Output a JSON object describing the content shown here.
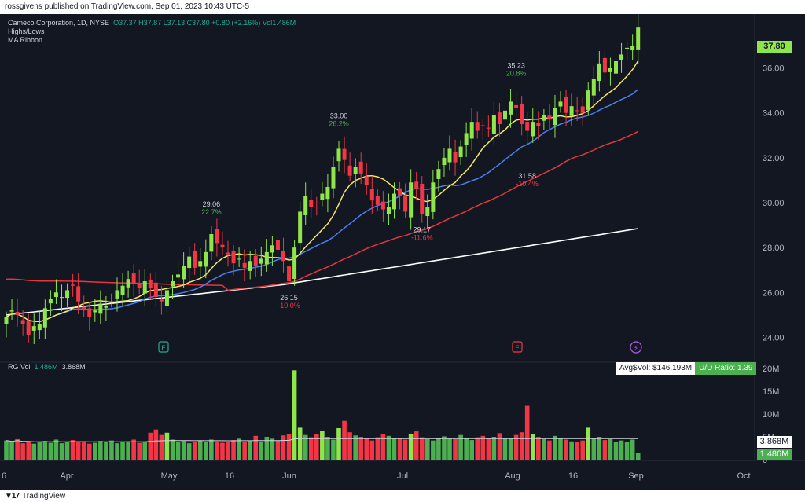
{
  "header": {
    "publish_text": "rossgivens published on TradingView.com, Sep 01, 2023 10:43 UTC-5"
  },
  "footer": {
    "brand": "TradingView"
  },
  "legend": {
    "symbol": "Cameco Corporation, 1D, NYSE",
    "ohlc": "O37.37  H37.87  L37.13  C37.80  +0.80 (+2.16%)  Vol1.486M",
    "studies": [
      "Highs/Lows",
      "MA Ribbon"
    ]
  },
  "volume_legend": {
    "label": "RG Vol",
    "value1": "1.486M",
    "value2": "3.868M"
  },
  "avg_box": {
    "avg_label": "Avg$Vol: $146.193M",
    "ratio_label": "U/D Ratio: 1.39"
  },
  "price_tags": {
    "last_price": "37.80",
    "vol_avg": "3.868M",
    "vol_last": "1.486M"
  },
  "colors": {
    "up": "#8fe64a",
    "up_dark": "#4caf50",
    "down": "#f23645",
    "ma10": "#f5e663",
    "ma21": "#4c7ef0",
    "ma50": "#e5363d",
    "ma200": "#ffffff",
    "bg": "#131722"
  },
  "chart_data": {
    "type": "candlestick",
    "price_axis": {
      "ticks": [
        "24.00",
        "26.00",
        "28.00",
        "30.00",
        "32.00",
        "34.00",
        "36.00"
      ],
      "range": [
        23.0,
        38.4
      ]
    },
    "volume_axis": {
      "ticks": [
        "0",
        "5M",
        "10M",
        "15M",
        "20M"
      ],
      "range": [
        0,
        20
      ]
    },
    "x_ticks": [
      {
        "label": "6",
        "x": 5
      },
      {
        "label": "Apr",
        "x": 85
      },
      {
        "label": "May",
        "x": 215
      },
      {
        "label": "16",
        "x": 292
      },
      {
        "label": "Jun",
        "x": 368
      },
      {
        "label": "Jul",
        "x": 512
      },
      {
        "label": "Aug",
        "x": 652
      },
      {
        "label": "16",
        "x": 729
      },
      {
        "label": "Sep",
        "x": 809
      },
      {
        "label": "Oct",
        "x": 946
      }
    ],
    "annotations": [
      {
        "price": "29.06",
        "pct": "22.7%",
        "type": "high",
        "i": 37
      },
      {
        "price": "26.15",
        "pct": "-10.0%",
        "type": "low",
        "i": 51
      },
      {
        "price": "33.00",
        "pct": "26.2%",
        "type": "high",
        "i": 60
      },
      {
        "price": "29.17",
        "pct": "-11.6%",
        "type": "low",
        "i": 75
      },
      {
        "price": "35.23",
        "pct": "20.8%",
        "type": "high",
        "i": 92
      },
      {
        "price": "31.58",
        "pct": "-10.4%",
        "type": "low",
        "i": 94
      }
    ],
    "event_markers": [
      {
        "label": "E",
        "x": 208,
        "kind": "earnings-past"
      },
      {
        "label": "E",
        "x": 658,
        "kind": "earnings"
      },
      {
        "label": "⚡",
        "x": 809,
        "kind": "dividend"
      }
    ],
    "close": [
      24.9,
      25.2,
      25.0,
      24.6,
      24.1,
      24.5,
      24.6,
      25.3,
      25.7,
      26.0,
      25.8,
      26.1,
      26.3,
      25.6,
      25.2,
      24.9,
      25.2,
      25.5,
      25.4,
      25.6,
      26.1,
      26.3,
      26.6,
      26.4,
      26.2,
      26.5,
      26.2,
      25.8,
      25.6,
      26.1,
      26.5,
      26.8,
      27.2,
      27.6,
      27.1,
      27.4,
      27.8,
      28.6,
      28.2,
      28.0,
      27.7,
      27.3,
      27.5,
      27.1,
      27.4,
      27.2,
      27.5,
      27.8,
      28.1,
      27.9,
      27.4,
      26.5,
      28.0,
      29.6,
      30.3,
      29.8,
      30.0,
      30.4,
      30.7,
      31.6,
      32.4,
      31.9,
      31.2,
      31.6,
      31.3,
      30.8,
      30.1,
      29.9,
      29.7,
      29.8,
      30.4,
      30.3,
      29.6,
      30.9,
      30.6,
      29.5,
      29.8,
      30.9,
      31.5,
      32.0,
      32.4,
      31.8,
      32.5,
      33.1,
      33.6,
      33.2,
      33.4,
      33.3,
      33.9,
      33.5,
      34.1,
      34.5,
      34.2,
      33.5,
      33.2,
      33.6,
      33.4,
      33.9,
      33.7,
      34.2,
      34.5,
      34.0,
      34.3,
      34.1,
      34.0,
      35.0,
      35.5,
      36.2,
      35.8,
      36.0,
      36.3,
      36.6,
      36.9,
      37.0,
      37.8
    ],
    "volume": [
      4.2,
      3.8,
      4.5,
      3.6,
      4.0,
      3.5,
      3.9,
      4.1,
      3.7,
      4.4,
      3.6,
      3.9,
      4.3,
      3.8,
      4.0,
      3.5,
      3.7,
      4.1,
      3.9,
      4.2,
      3.6,
      3.8,
      4.0,
      4.4,
      3.7,
      3.9,
      5.9,
      6.6,
      5.4,
      5.9,
      4.4,
      3.9,
      4.1,
      3.6,
      3.8,
      4.2,
      3.9,
      4.4,
      4.0,
      3.7,
      3.8,
      4.3,
      4.6,
      3.9,
      4.1,
      5.2,
      4.0,
      5.0,
      4.6,
      4.2,
      5.3,
      5.6,
      19.6,
      7.0,
      5.4,
      4.9,
      5.6,
      6.3,
      5.0,
      4.4,
      6.9,
      8.5,
      6.0,
      5.3,
      5.0,
      4.8,
      4.2,
      4.9,
      5.6,
      5.2,
      4.8,
      4.6,
      4.4,
      5.7,
      6.2,
      4.9,
      4.5,
      4.2,
      4.6,
      5.1,
      4.8,
      4.5,
      5.4,
      4.7,
      4.3,
      4.9,
      5.2,
      4.6,
      5.0,
      5.8,
      4.7,
      4.6,
      5.4,
      6.0,
      11.8,
      5.6,
      5.0,
      4.5,
      4.2,
      5.2,
      4.6,
      4.4,
      4.0,
      3.9,
      4.2,
      7.0,
      4.6,
      5.0,
      4.3,
      4.5,
      3.8,
      4.2,
      3.9,
      4.4,
      1.486
    ]
  }
}
